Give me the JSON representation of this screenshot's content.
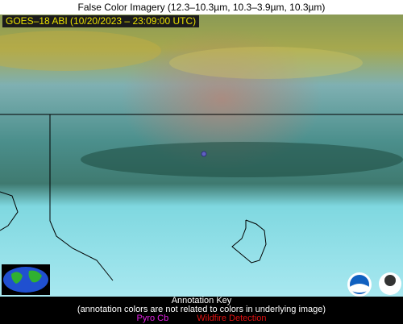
{
  "title": "False Color Imagery (12.3–10.3µm, 10.3–3.9µm, 10.3µm)",
  "image_label": "GOES–18 ABI (10/20/2023 – 23:09:00 UTC)",
  "annotation_key": {
    "title": "Annotation Key",
    "note": "(annotation colors are not related to colors in underlying image)",
    "items": [
      "Pyro Cb",
      "Wildfire Detection"
    ]
  }
}
